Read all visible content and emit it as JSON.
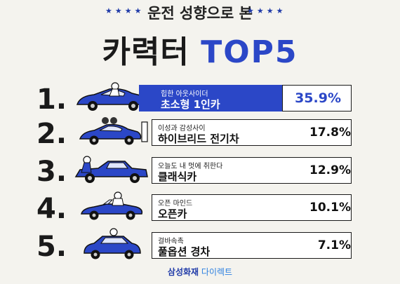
{
  "header": {
    "stars_left": "★★★★",
    "stars_right": "★★★★",
    "subtitle": "운전 성향으로 본",
    "title_korean": "카력터",
    "title_accent": "TOP5"
  },
  "rankings": [
    {
      "rank": "1.",
      "tagline": "힙한 아웃사이더",
      "name": "초소형 1인카",
      "percent": "35.9%",
      "car_icon": "small-car-icon"
    },
    {
      "rank": "2.",
      "tagline": "이성과 감성사이",
      "name": "하이브리드 전기차",
      "percent": "17.8%",
      "car_icon": "ev-car-icon"
    },
    {
      "rank": "3.",
      "tagline": "오늘도 내 멋에 취한다",
      "name": "클래식카",
      "percent": "12.9%",
      "car_icon": "classic-car-icon"
    },
    {
      "rank": "4.",
      "tagline": "오픈 마인드",
      "name": "오픈카",
      "percent": "10.1%",
      "car_icon": "convertible-car-icon"
    },
    {
      "rank": "5.",
      "tagline": "걸바속촉",
      "name": "풀옵션 경차",
      "percent": "7.1%",
      "car_icon": "compact-car-icon"
    }
  ],
  "footer": {
    "brand_main": "삼성화재",
    "brand_sub": "다이렉트"
  },
  "colors": {
    "accent": "#2b47c7",
    "background": "#f4f3ee",
    "text": "#1a1a1a"
  }
}
